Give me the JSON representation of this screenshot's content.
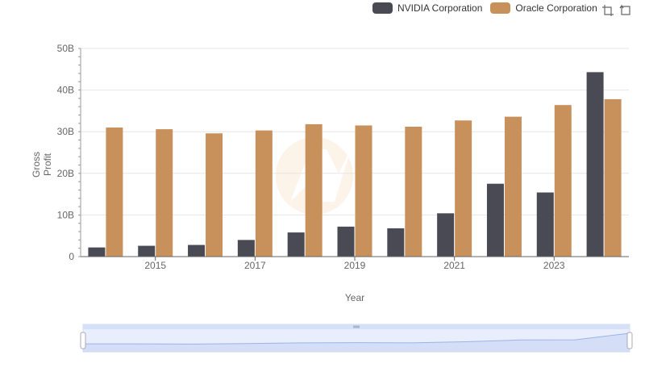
{
  "legend": {
    "items": [
      {
        "label": "NVIDIA Corporation",
        "color": "#4a4a55"
      },
      {
        "label": "Oracle Corporation",
        "color": "#c8915c"
      }
    ]
  },
  "toolbox": {
    "zoom_icon": "zoom-select-icon",
    "reset_icon": "zoom-reset-icon"
  },
  "chart_data": {
    "type": "bar",
    "xlabel": "Year",
    "ylabel": "Gross Profit",
    "ylim": [
      0,
      50000000000
    ],
    "y_ticks": [
      "0",
      "10B",
      "20B",
      "30B",
      "40B",
      "50B"
    ],
    "x_tick_labels": [
      "2015",
      "2017",
      "2019",
      "2021",
      "2023"
    ],
    "categories": [
      "2014",
      "2015",
      "2016",
      "2017",
      "2018",
      "2019",
      "2020",
      "2021",
      "2022",
      "2023",
      "2024"
    ],
    "series": [
      {
        "name": "NVIDIA Corporation",
        "color": "#4a4a55",
        "values": [
          2200000000,
          2600000000,
          2800000000,
          4000000000,
          5800000000,
          7200000000,
          6800000000,
          10400000000,
          17500000000,
          15400000000,
          44300000000
        ]
      },
      {
        "name": "Oracle Corporation",
        "color": "#c8915c",
        "values": [
          31000000000,
          30600000000,
          29600000000,
          30300000000,
          31800000000,
          31500000000,
          31200000000,
          32700000000,
          33600000000,
          36400000000,
          37800000000
        ]
      }
    ],
    "grid": true,
    "legend_position": "top-right"
  }
}
